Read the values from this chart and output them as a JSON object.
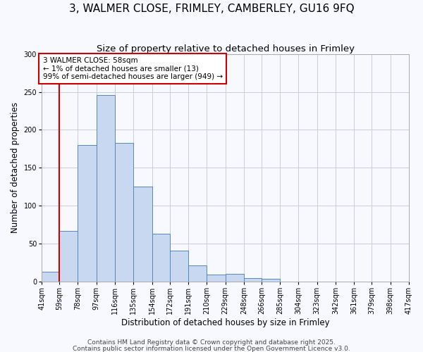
{
  "title": "3, WALMER CLOSE, FRIMLEY, CAMBERLEY, GU16 9FQ",
  "subtitle": "Size of property relative to detached houses in Frimley",
  "xlabel": "Distribution of detached houses by size in Frimley",
  "ylabel": "Number of detached properties",
  "bin_labels": [
    "41sqm",
    "59sqm",
    "78sqm",
    "97sqm",
    "116sqm",
    "135sqm",
    "154sqm",
    "172sqm",
    "191sqm",
    "210sqm",
    "229sqm",
    "248sqm",
    "266sqm",
    "285sqm",
    "304sqm",
    "323sqm",
    "342sqm",
    "361sqm",
    "379sqm",
    "398sqm",
    "417sqm"
  ],
  "bin_edges": [
    41,
    59,
    78,
    97,
    116,
    135,
    154,
    172,
    191,
    210,
    229,
    248,
    266,
    285,
    304,
    323,
    342,
    361,
    379,
    398,
    417
  ],
  "bar_heights": [
    13,
    67,
    180,
    246,
    183,
    125,
    63,
    41,
    21,
    9,
    10,
    5,
    4,
    0,
    0,
    0,
    0,
    0,
    0,
    0
  ],
  "bar_color": "#c8d8f0",
  "bar_edge_color": "#5588bb",
  "vline_x": 59,
  "vline_color": "#cc0000",
  "annotation_text": "3 WALMER CLOSE: 58sqm\n← 1% of detached houses are smaller (13)\n99% of semi-detached houses are larger (949) →",
  "annotation_box_color": "#ffffff",
  "annotation_box_edge": "#cc0000",
  "ylim": [
    0,
    300
  ],
  "yticks": [
    0,
    50,
    100,
    150,
    200,
    250,
    300
  ],
  "footer1": "Contains HM Land Registry data © Crown copyright and database right 2025.",
  "footer2": "Contains public sector information licensed under the Open Government Licence v3.0.",
  "background_color": "#f8f8ff",
  "grid_color": "#ccccdd",
  "title_fontsize": 11,
  "subtitle_fontsize": 9.5,
  "axis_label_fontsize": 8.5,
  "tick_fontsize": 7,
  "annotation_fontsize": 7.5,
  "footer_fontsize": 6.5
}
